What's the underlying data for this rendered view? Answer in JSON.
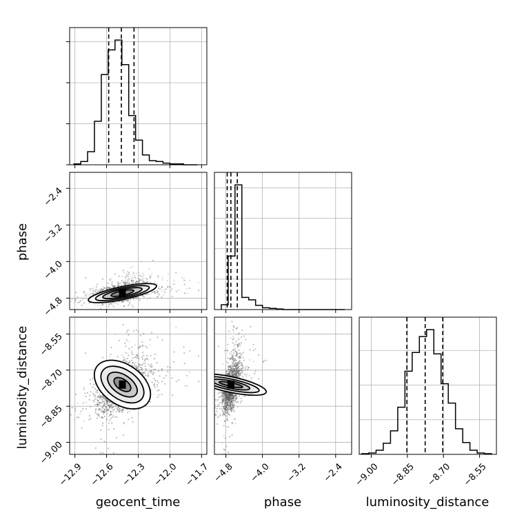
{
  "chart_data": {
    "type": "corner",
    "parameters": [
      "geocent_time",
      "phase",
      "luminosity_distance"
    ],
    "axis_labels": {
      "x": [
        "geocent_time",
        "phase",
        "luminosity_distance"
      ],
      "y": [
        "",
        "phase",
        "luminosity_distance"
      ]
    },
    "ranges": {
      "geocent_time": [
        -12.95,
        -11.65
      ],
      "phase": [
        -5.05,
        -2.05
      ],
      "luminosity_distance": [
        -9.05,
        -8.48
      ]
    },
    "ticks": {
      "geocent_time": [
        -12.9,
        -12.6,
        -12.3,
        -12.0,
        -11.7
      ],
      "phase": [
        -4.8,
        -4.0,
        -3.2,
        -2.4
      ],
      "luminosity_distance": [
        -9.0,
        -8.85,
        -8.7,
        -8.55
      ]
    },
    "tick_labels": {
      "geocent_time": [
        "−12.9",
        "−12.6",
        "−12.3",
        "−12.0",
        "−11.7"
      ],
      "phase": [
        "−4.8",
        "−4.0",
        "−3.2",
        "−2.4"
      ],
      "luminosity_distance": [
        "−9.00",
        "−8.85",
        "−8.70",
        "−8.55"
      ]
    },
    "quantiles": {
      "geocent_time": [
        -12.58,
        -12.46,
        -12.34
      ],
      "phase": [
        -4.77,
        -4.69,
        -4.55
      ],
      "luminosity_distance": [
        -8.852,
        -8.776,
        -8.703
      ]
    },
    "histograms": {
      "geocent_time": {
        "edges": [
          -12.91,
          -12.845,
          -12.78,
          -12.715,
          -12.65,
          -12.585,
          -12.52,
          -12.455,
          -12.39,
          -12.325,
          -12.26,
          -12.195,
          -12.13,
          -12.065,
          -12.0,
          -11.935,
          -11.87,
          -11.805,
          -11.74
        ],
        "counts": [
          1,
          4,
          16,
          53,
          110,
          140,
          152,
          122,
          60,
          30,
          12,
          5,
          4,
          2,
          1,
          1,
          0,
          0
        ]
      },
      "phase": {
        "edges": [
          -4.9,
          -4.75,
          -4.6,
          -4.45,
          -4.3,
          -4.15,
          -4.0,
          -3.85,
          -3.7,
          -3.55,
          -3.4,
          -3.25,
          -3.1,
          -2.95,
          -2.8,
          -2.65,
          -2.5,
          -2.35,
          -2.2
        ],
        "counts": [
          8,
          88,
          205,
          20,
          16,
          7,
          3,
          2,
          1,
          0,
          0,
          0,
          0,
          0,
          0,
          0,
          0,
          0
        ]
      },
      "luminosity_distance": {
        "edges": [
          -9.04,
          -9.01,
          -8.98,
          -8.95,
          -8.92,
          -8.89,
          -8.86,
          -8.83,
          -8.8,
          -8.77,
          -8.74,
          -8.71,
          -8.68,
          -8.65,
          -8.62,
          -8.59,
          -8.56,
          -8.53,
          -8.5
        ],
        "counts": [
          1,
          2,
          6,
          16,
          34,
          68,
          120,
          147,
          170,
          180,
          145,
          102,
          74,
          37,
          17,
          6,
          2,
          1
        ]
      }
    },
    "joint": {
      "phase_vs_geocent_time": {
        "mean": [
          -12.47,
          -4.69
        ],
        "std": [
          0.11,
          0.09
        ],
        "correlation": 0.5,
        "contour_widths": [
          [
            0.11,
            0.05
          ],
          [
            0.19,
            0.08
          ],
          [
            0.26,
            0.11
          ],
          [
            0.33,
            0.14
          ]
        ],
        "contour_angle_deg": -12,
        "peak": [
          -12.45,
          -4.69
        ]
      },
      "luminosity_distance_vs_geocent_time": {
        "mean": [
          -12.47,
          -8.78
        ],
        "std": [
          0.11,
          0.05
        ],
        "correlation": 0.6,
        "contour_widths": [
          [
            0.05,
            0.04
          ],
          [
            0.09,
            0.07
          ],
          [
            0.14,
            0.1
          ],
          [
            0.19,
            0.13
          ]
        ],
        "contour_angle_deg": -55,
        "peak": [
          -12.45,
          -8.76
        ]
      },
      "luminosity_distance_vs_phase": {
        "mean": [
          -4.69,
          -8.77
        ],
        "std": [
          0.09,
          0.05
        ],
        "correlation": 0.55,
        "contour_widths": [
          [
            0.04,
            0.05
          ],
          [
            0.08,
            0.08
          ],
          [
            0.12,
            0.12
          ],
          [
            0.17,
            0.15
          ]
        ],
        "contour_angle_deg": -78,
        "peak": [
          -4.69,
          -8.76
        ]
      }
    },
    "grid": true,
    "colors": {
      "line": "#000000",
      "grid": "#b0b0b0",
      "points": "#555555"
    }
  }
}
